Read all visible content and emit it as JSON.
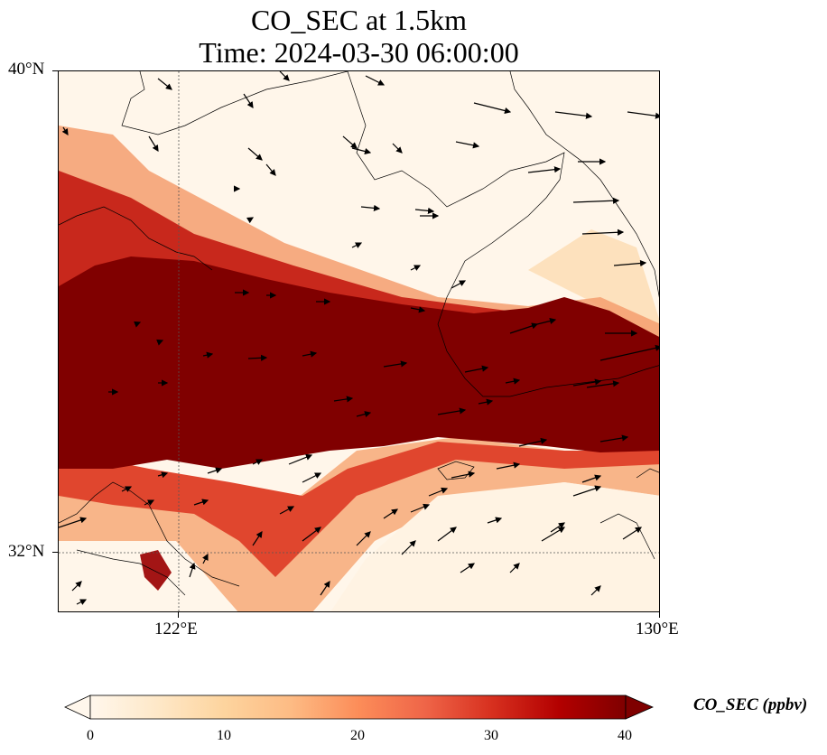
{
  "title_line1": "CO_SEC at 1.5km",
  "title_line2": "Time: 2024-03-30 06:00:00",
  "lat_ticks": [
    "40°N",
    "32°N"
  ],
  "lon_ticks": [
    "122°E",
    "130°E"
  ],
  "map": {
    "lon_range": [
      120,
      130
    ],
    "lat_range": [
      31,
      40
    ],
    "gridlines": {
      "lons": [
        122
      ],
      "lats": [
        32
      ]
    },
    "plume_color": "#800000",
    "background_color": "#fff6ea"
  },
  "colorbar": {
    "label": "CO_SEC (ppbv)",
    "ticks": [
      "0",
      "10",
      "20",
      "30",
      "40"
    ],
    "range": [
      0,
      40
    ],
    "extend": "both",
    "colormap": "OrRd",
    "colors": [
      "#fff7ec",
      "#fee8c8",
      "#fdd49e",
      "#fdbb84",
      "#fc8d59",
      "#ef6548",
      "#d7301f",
      "#b30000",
      "#7f0000"
    ]
  }
}
